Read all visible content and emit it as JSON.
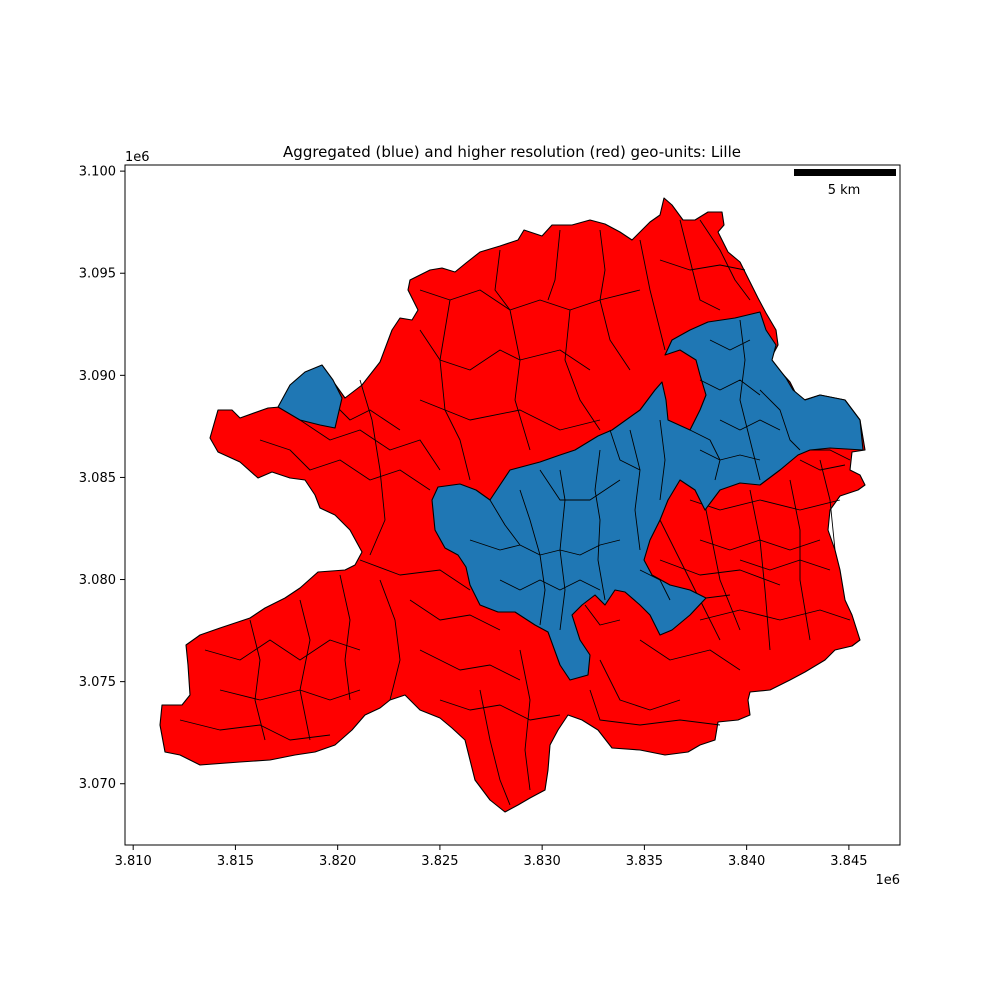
{
  "figure": {
    "title": "Aggregated (blue) and higher resolution (red) geo-units: Lille",
    "x_offset_label": "1e6",
    "y_offset_label": "1e6",
    "scalebar_label": "5 km"
  },
  "colors": {
    "aggregated": "#1f77b4",
    "higher_resolution": "#ff0000",
    "outline": "#000000",
    "background": "#ffffff"
  },
  "chart_data": {
    "type": "map",
    "title": "Aggregated (blue) and higher resolution (red) geo-units: Lille",
    "x_tick_labels": [
      "3.810",
      "3.815",
      "3.820",
      "3.825",
      "3.830",
      "3.835",
      "3.840",
      "3.845"
    ],
    "y_tick_labels": [
      "3.070",
      "3.075",
      "3.080",
      "3.085",
      "3.090",
      "3.095",
      "3.100"
    ],
    "x_ticks": [
      3.81,
      3.815,
      3.82,
      3.825,
      3.83,
      3.835,
      3.84,
      3.845
    ],
    "y_ticks": [
      3.07,
      3.075,
      3.08,
      3.085,
      3.09,
      3.095,
      3.1
    ],
    "xlim": [
      3.8096,
      3.8475
    ],
    "ylim": [
      3.067,
      3.1003
    ],
    "grid": false,
    "scalebar": {
      "label": "5 km",
      "placement": "top-right"
    },
    "series": [
      {
        "color_role": "higher_resolution",
        "kind": "polygons"
      },
      {
        "color_role": "aggregated",
        "kind": "polygons"
      }
    ]
  }
}
